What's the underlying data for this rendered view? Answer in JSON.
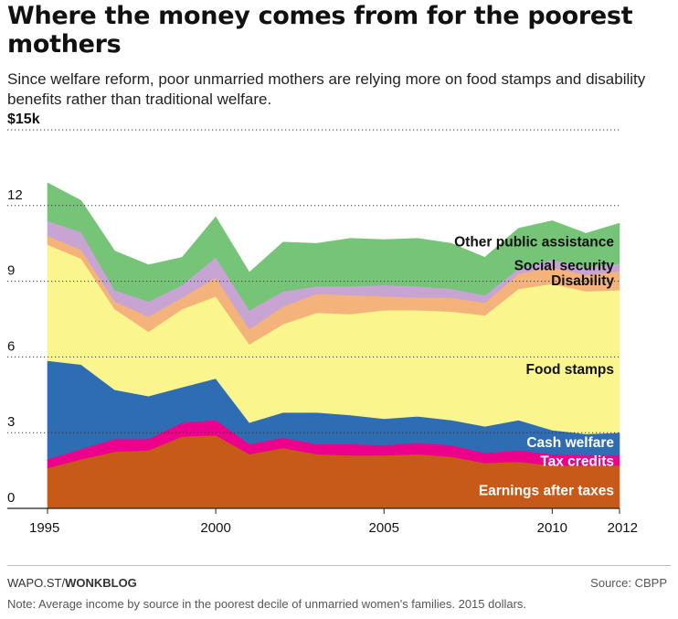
{
  "title": "Where the money comes from for the poorest mothers",
  "subtitle": "Since welfare reform, poor unmarried mothers are relying more on food stamps and disability benefits rather than traditional welfare.",
  "footer": {
    "credit_prefix": "WAPO.ST/",
    "credit_brand": "WONKBLOG",
    "source": "Source: CBPP",
    "note": "Note: Average income by source in the poorest decile of unmarried women's families. 2015 dollars."
  },
  "chart_data": {
    "type": "area",
    "stacked": true,
    "x": [
      1995,
      1996,
      1997,
      1998,
      1999,
      2000,
      2001,
      2002,
      2003,
      2004,
      2005,
      2006,
      2007,
      2008,
      2009,
      2010,
      2011,
      2012
    ],
    "x_tick_labels": [
      "1995",
      "2000",
      "2005",
      "2010",
      "2012"
    ],
    "y_tick_labels": [
      "0",
      "3",
      "6",
      "9",
      "12",
      "$15k"
    ],
    "ylim": [
      0,
      15
    ],
    "yticks": [
      0,
      3,
      6,
      9,
      12,
      15
    ],
    "y_unit": "dollars (thousands)",
    "grid": "horizontal dotted",
    "series": [
      {
        "name": "Earnings after taxes",
        "color": "#c85a19",
        "values": [
          1.6,
          1.95,
          2.25,
          2.3,
          2.85,
          2.9,
          2.15,
          2.4,
          2.15,
          2.1,
          2.1,
          2.15,
          2.05,
          1.8,
          1.85,
          1.7,
          1.7,
          1.7
        ]
      },
      {
        "name": "Tax credits",
        "color": "#ec008c",
        "values": [
          0.35,
          0.4,
          0.5,
          0.45,
          0.55,
          0.6,
          0.4,
          0.4,
          0.4,
          0.45,
          0.4,
          0.45,
          0.45,
          0.4,
          0.45,
          0.45,
          0.4,
          0.4
        ]
      },
      {
        "name": "Cash welfare",
        "color": "#2e6db3",
        "values": [
          3.9,
          3.35,
          1.95,
          1.7,
          1.4,
          1.65,
          0.85,
          1.0,
          1.25,
          1.15,
          1.05,
          1.05,
          1.0,
          1.05,
          1.2,
          0.95,
          0.85,
          0.9
        ]
      },
      {
        "name": "Food stamps",
        "color": "#faf58c",
        "values": [
          4.6,
          4.2,
          3.2,
          2.55,
          3.1,
          3.25,
          3.1,
          3.5,
          3.95,
          4.0,
          4.3,
          4.2,
          4.3,
          4.4,
          5.2,
          5.8,
          5.65,
          5.65
        ]
      },
      {
        "name": "Disability",
        "color": "#f4b37a",
        "values": [
          0.35,
          0.35,
          0.3,
          0.6,
          0.45,
          0.75,
          0.6,
          0.7,
          0.75,
          0.75,
          0.55,
          0.5,
          0.55,
          0.5,
          0.6,
          0.65,
          0.65,
          0.75
        ]
      },
      {
        "name": "Social security",
        "color": "#c8a4d2",
        "values": [
          0.6,
          0.7,
          0.45,
          0.6,
          0.5,
          0.8,
          0.75,
          0.6,
          0.3,
          0.35,
          0.45,
          0.45,
          0.35,
          0.3,
          0.2,
          0.3,
          0.3,
          0.3
        ]
      },
      {
        "name": "Other public assistance",
        "color": "#76c477",
        "values": [
          1.5,
          1.25,
          1.55,
          1.45,
          1.1,
          1.6,
          1.5,
          1.95,
          1.7,
          1.9,
          1.8,
          1.9,
          1.8,
          1.5,
          1.6,
          1.55,
          1.35,
          1.6
        ]
      }
    ]
  }
}
